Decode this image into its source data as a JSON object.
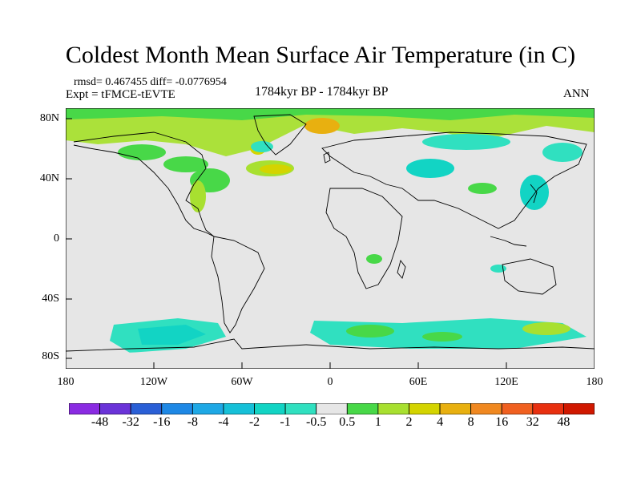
{
  "title": "Coldest Month Mean Surface Air Temperature (in C)",
  "stats_line": "rmsd= 0.467455 diff= -0.0776954",
  "experiment": "Expt = tFMCE-tEVTE",
  "period": "1784kyr BP - 1784kyr BP",
  "season": "ANN",
  "lat_labels": [
    "80N",
    "40N",
    "0",
    "40S",
    "80S"
  ],
  "lon_labels": [
    "180",
    "120W",
    "60W",
    "0",
    "60E",
    "120E",
    "180"
  ],
  "colorbar": {
    "labels": [
      "-48",
      "-32",
      "-16",
      "-8",
      "-4",
      "-2",
      "-1",
      "-0.5",
      "0.5",
      "1",
      "2",
      "4",
      "8",
      "16",
      "32",
      "48"
    ],
    "colors": [
      "#8a2be2",
      "#6a33d8",
      "#2a5fd6",
      "#1e88e5",
      "#1ea8e5",
      "#16c0d8",
      "#12d4c4",
      "#30e0c0",
      "#e6e6e6",
      "#48d848",
      "#a8e030",
      "#d4d400",
      "#e8b010",
      "#f08820",
      "#f06020",
      "#e83010",
      "#d01800"
    ]
  }
}
